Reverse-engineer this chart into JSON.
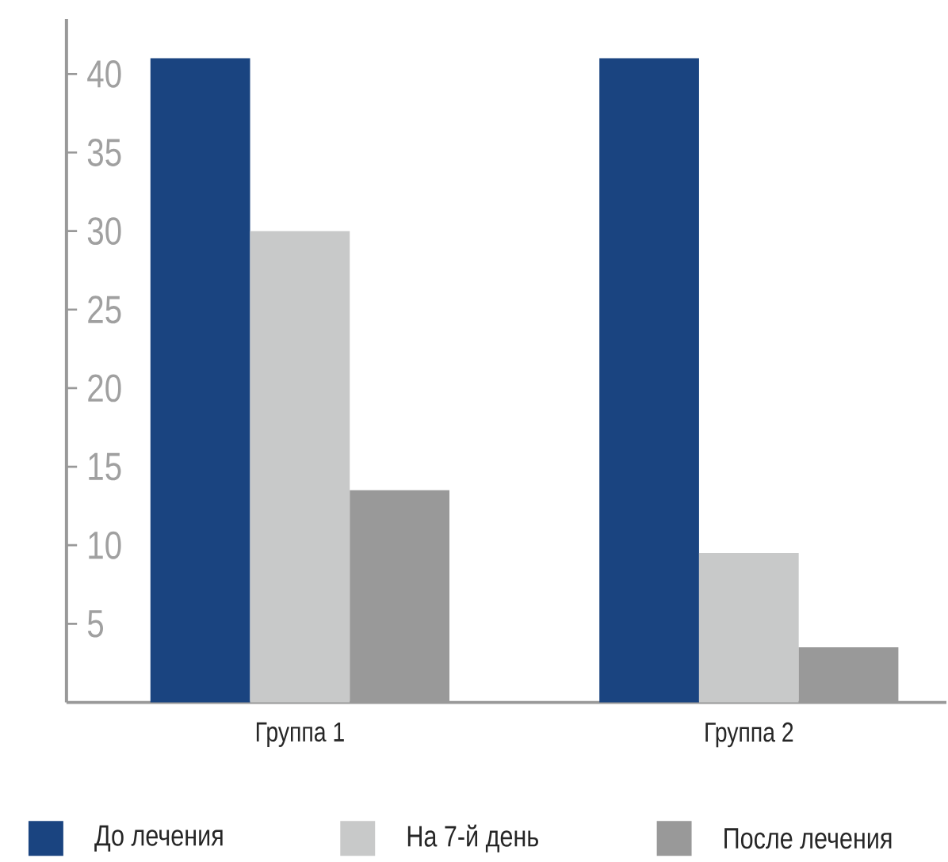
{
  "chart_data": {
    "type": "bar",
    "categories": [
      "Группа 1",
      "Группа 2"
    ],
    "series": [
      {
        "name": "До лечения",
        "color": "#1a4480",
        "values": [
          41,
          41
        ]
      },
      {
        "name": "На 7-й день",
        "color": "#c8c9c9",
        "values": [
          30,
          9.5
        ]
      },
      {
        "name": "После лечения",
        "color": "#999999",
        "values": [
          13.5,
          3.5
        ]
      }
    ],
    "ylim": [
      0,
      43.5
    ],
    "yticks": [
      5,
      10,
      15,
      20,
      25,
      30,
      35,
      40
    ],
    "grid": false,
    "legend": "bottom"
  }
}
